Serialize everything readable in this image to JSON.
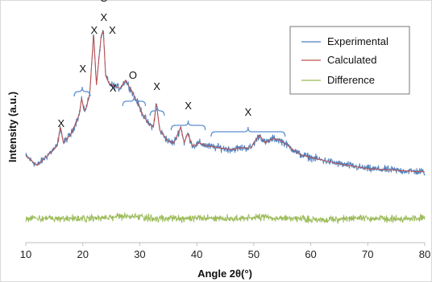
{
  "chart_data": {
    "type": "line",
    "title": "",
    "xlabel": "Angle 2θ(°)",
    "ylabel": "Intensity (a.u.)",
    "xlim": [
      10,
      80
    ],
    "xticks": [
      "10",
      "20",
      "30",
      "40",
      "50",
      "60",
      "70",
      "80"
    ],
    "yticks_shown": false,
    "grid": false,
    "legend_placement": "top-right",
    "series": [
      {
        "name": "Experimental",
        "color": "#4f81bd"
      },
      {
        "name": "Calculated",
        "color": "#c0504d"
      },
      {
        "name": "Difference",
        "color": "#9bbb59"
      }
    ],
    "peak_profile": {
      "x": [
        10,
        12,
        14,
        15.5,
        16.1,
        16.6,
        18,
        19.4,
        19.8,
        20.2,
        20.6,
        21.2,
        21.9,
        22.4,
        23.2,
        23.6,
        24.0,
        24.6,
        25.2,
        26.5,
        27.5,
        28.5,
        29.5,
        30.5,
        31.5,
        32.4,
        32.9,
        33.5,
        35,
        36,
        37.2,
        37.8,
        38.4,
        39.3,
        40.5,
        42,
        44,
        46,
        48,
        49.5,
        51.0,
        52.0,
        53.5,
        55,
        56.5,
        58,
        60,
        65,
        70,
        75,
        80
      ],
      "y": [
        0.22,
        0.16,
        0.23,
        0.28,
        0.4,
        0.3,
        0.36,
        0.48,
        0.58,
        0.5,
        0.52,
        0.6,
        0.98,
        0.66,
        0.96,
        1.0,
        0.72,
        0.67,
        0.66,
        0.64,
        0.69,
        0.63,
        0.56,
        0.48,
        0.42,
        0.4,
        0.55,
        0.38,
        0.31,
        0.3,
        0.4,
        0.3,
        0.36,
        0.28,
        0.3,
        0.28,
        0.27,
        0.26,
        0.27,
        0.27,
        0.35,
        0.3,
        0.33,
        0.31,
        0.27,
        0.23,
        0.21,
        0.17,
        0.14,
        0.13,
        0.12
      ]
    },
    "annotations": [
      {
        "text": "X",
        "x": 16.2,
        "level": 0.4
      },
      {
        "text": "X",
        "x": 20.0,
        "level": 0.74
      },
      {
        "text": "X",
        "x": 22.0,
        "level": 0.98
      },
      {
        "text": "O",
        "x": 23.7,
        "level": 1.18
      },
      {
        "text": "X",
        "x": 23.7,
        "level": 1.06
      },
      {
        "text": "X",
        "x": 25.2,
        "level": 0.98
      },
      {
        "text": "X",
        "x": 25.3,
        "level": 0.62
      },
      {
        "text": "O",
        "x": 28.8,
        "level": 0.7
      },
      {
        "text": "X",
        "x": 33.0,
        "level": 0.63
      },
      {
        "text": "X",
        "x": 38.5,
        "level": 0.51
      },
      {
        "text": "X",
        "x": 49.0,
        "level": 0.47
      }
    ],
    "brackets": [
      {
        "x1": 18.5,
        "x2": 21.3,
        "level": 0.62
      },
      {
        "x1": 27.0,
        "x2": 31.0,
        "level": 0.56
      },
      {
        "x1": 31.8,
        "x2": 34.3,
        "level": 0.5
      },
      {
        "x1": 35.5,
        "x2": 41.5,
        "level": 0.41
      },
      {
        "x1": 42.5,
        "x2": 55.5,
        "level": 0.37
      }
    ]
  }
}
